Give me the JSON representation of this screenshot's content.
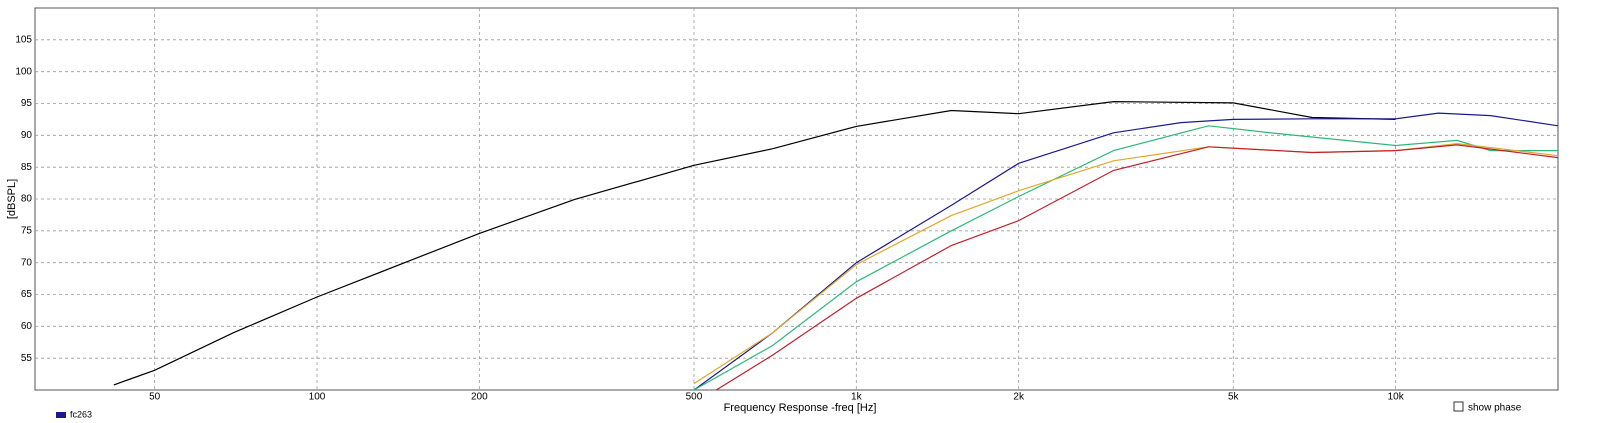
{
  "chart_data": {
    "type": "line",
    "x_label": "Frequency Response -freq [Hz]",
    "y_label": "[dBSPL]",
    "legend_entry": "fc263",
    "checkbox_label": "show phase",
    "log_x": true,
    "grid": true,
    "xlim": [
      30,
      20000
    ],
    "ylim": [
      50,
      110
    ],
    "xticks": [
      50,
      100,
      200,
      500,
      {
        "value": 1000,
        "label": "1k"
      },
      {
        "value": 2000,
        "label": "2k"
      },
      {
        "value": 5000,
        "label": "5k"
      },
      {
        "value": 10000,
        "label": "10k"
      }
    ],
    "yticks": [
      55,
      60,
      65,
      70,
      75,
      80,
      85,
      90,
      95,
      100,
      105
    ],
    "series": [
      {
        "color": "#000000",
        "x": [
          42,
          50,
          70,
          100,
          200,
          300,
          500,
          700,
          1000,
          1500,
          2000,
          3000,
          5000,
          7000,
          10000
        ],
        "values": [
          50.8,
          53.1,
          59,
          64.6,
          74.6,
          79.9,
          85.3,
          87.9,
          91.4,
          93.9,
          93.4,
          95.3,
          95.1,
          92.8,
          92.5
        ]
      },
      {
        "color": "#1a1a8c",
        "x": [
          500,
          700,
          1000,
          1500,
          2000,
          3000,
          4000,
          5000,
          7000,
          10000,
          12000,
          15000,
          20000
        ],
        "values": [
          50,
          59,
          70,
          79,
          85.6,
          90.4,
          92,
          92.5,
          92.6,
          92.6,
          93.5,
          93.1,
          91.5
        ]
      },
      {
        "color": "#2db87a",
        "x": [
          500,
          700,
          1000,
          1500,
          2000,
          3000,
          4500,
          6000,
          10000,
          13000,
          15000,
          20000
        ],
        "values": [
          50,
          57,
          67,
          75,
          80.4,
          87.6,
          91.5,
          90.3,
          88.4,
          89.2,
          87.6,
          87.6
        ]
      },
      {
        "color": "#e0a82a",
        "x": [
          500,
          700,
          1000,
          1500,
          2000,
          3000,
          4500,
          7000,
          10000,
          13000,
          20000
        ],
        "values": [
          51,
          59,
          69.7,
          77.4,
          81.3,
          86,
          88.2,
          87.3,
          87.6,
          88.7,
          86.8
        ]
      },
      {
        "color": "#c0202a",
        "x": [
          550,
          700,
          1000,
          1500,
          2000,
          3000,
          4500,
          7000,
          10000,
          13000,
          20000
        ],
        "values": [
          50,
          55.5,
          64.4,
          72.7,
          76.6,
          84.5,
          88.2,
          87.3,
          87.6,
          88.5,
          86.5
        ]
      }
    ]
  }
}
